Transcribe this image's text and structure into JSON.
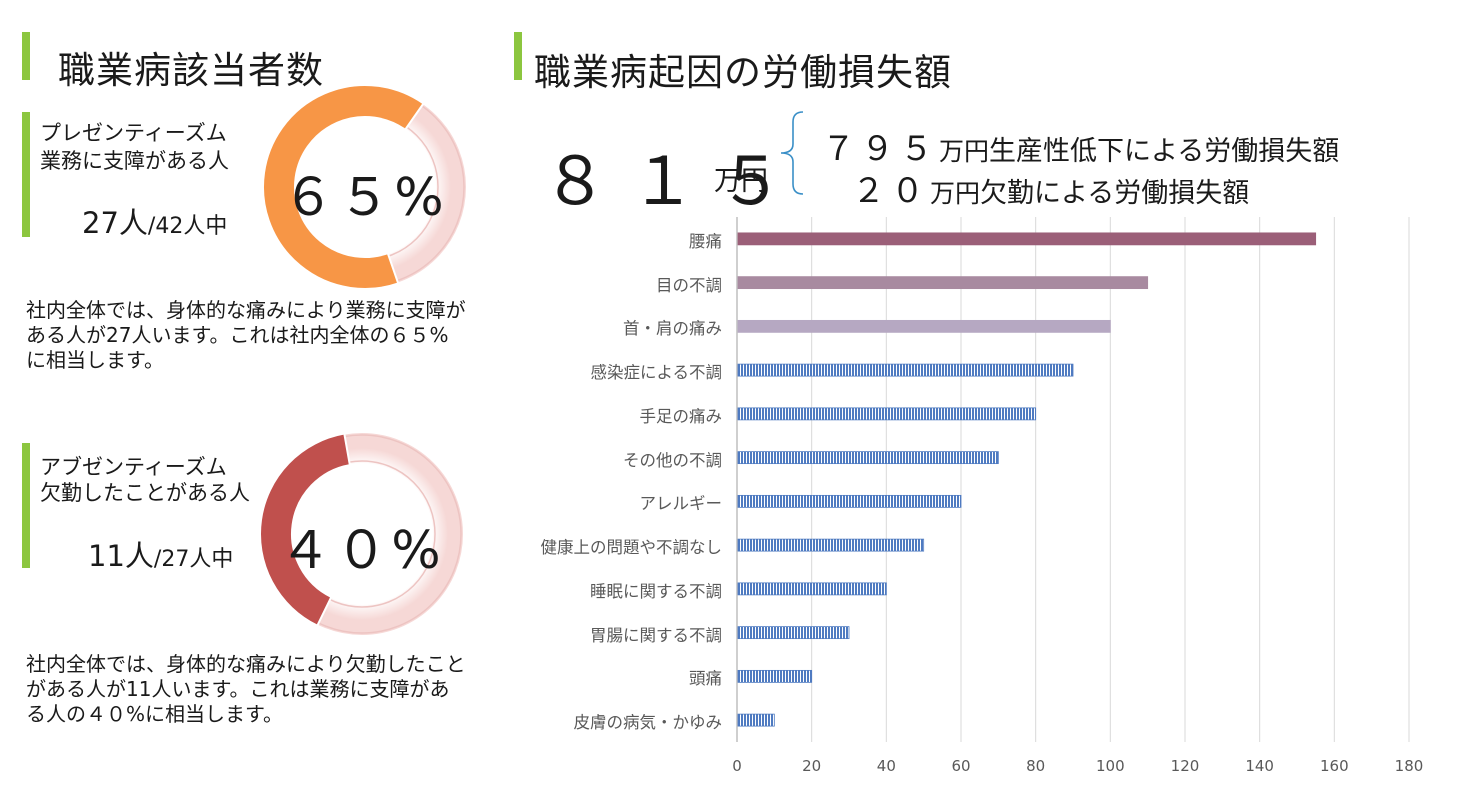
{
  "left": {
    "title": "職業病該当者数",
    "presenteeism": {
      "label1": "プレゼンティーズム",
      "label2": "業務に支障がある人",
      "count": "27人",
      "of": "/42人中",
      "percent_text": "６５%",
      "percent": 65,
      "color": "#f79646",
      "description": "社内全体では、身体的な痛みにより業務に支障がある人が27人います。これは社内全体の６５%に相当します。"
    },
    "absenteeism": {
      "label1": "アブゼンティーズム",
      "label2": "欠勤したことがある人",
      "count": "11人",
      "of": "/27人中",
      "percent_text": "４０%",
      "percent": 40,
      "color": "#c0504d",
      "description": "社内全体では、身体的な痛みにより欠勤したことがある人が11人います。これは業務に支障がある人の４０%に相当します。"
    }
  },
  "right": {
    "title": "職業病起因の労働損失額",
    "total_value": "８１５",
    "total_unit": "万円",
    "breakdown": [
      {
        "value": "７９５",
        "unit": "万円",
        "desc": "生産性低下による労働損失額"
      },
      {
        "value": "２０",
        "unit": "万円",
        "desc": "欠勤による労働損失額"
      }
    ]
  },
  "chart_data": {
    "type": "bar",
    "orientation": "horizontal",
    "categories": [
      "腰痛",
      "目の不調",
      "首・肩の痛み",
      "感染症による不調",
      "手足の痛み",
      "その他の不調",
      "アレルギー",
      "健康上の問題や不調なし",
      "睡眠に関する不調",
      "胃腸に関する不調",
      "頭痛",
      "皮膚の病気・かゆみ"
    ],
    "values": [
      155,
      110,
      100,
      90,
      80,
      70,
      60,
      50,
      40,
      30,
      20,
      10
    ],
    "xlim": [
      0,
      180
    ],
    "xticks": [
      0,
      20,
      40,
      60,
      80,
      100,
      120,
      140,
      160,
      180
    ],
    "grid": true,
    "colors": {
      "top": "#9b5f78",
      "second": "#a88aa0",
      "third": "#b6a8c2",
      "rest": "#4f7bc1"
    }
  }
}
